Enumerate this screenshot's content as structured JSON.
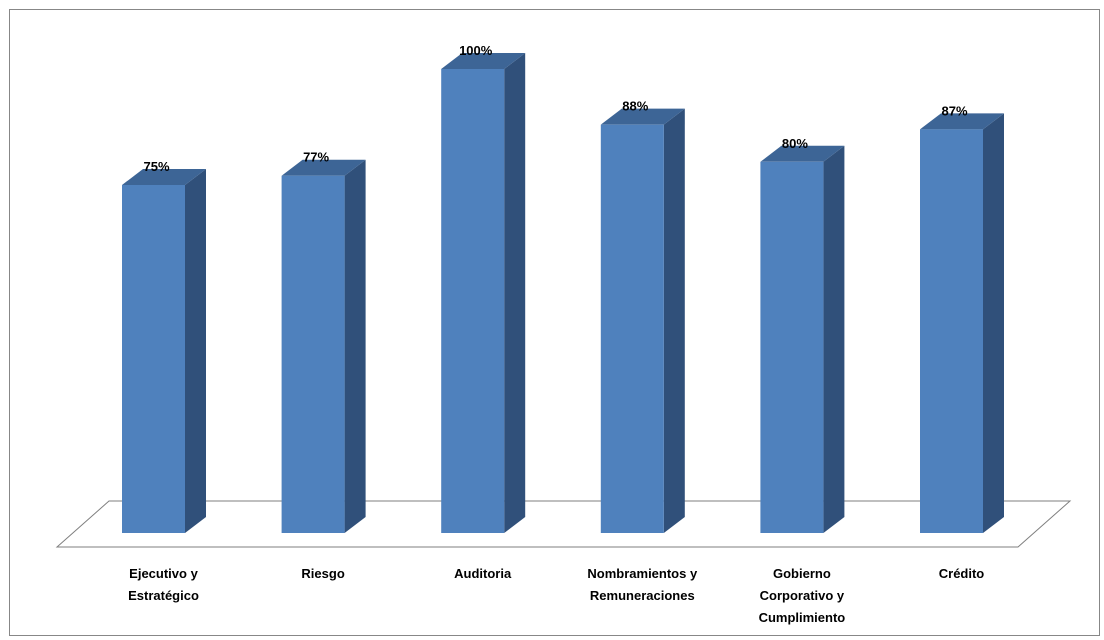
{
  "chart_data": {
    "type": "bar",
    "style": "3d-column",
    "categories": [
      [
        "Ejecutivo y",
        "Estratégico"
      ],
      [
        "Riesgo"
      ],
      [
        "Auditoria"
      ],
      [
        "Nombramientos y",
        "Remuneraciones"
      ],
      [
        "Gobierno",
        "Corporativo y",
        "Cumplimiento"
      ],
      [
        "Crédito"
      ]
    ],
    "values": [
      75,
      77,
      100,
      88,
      80,
      87
    ],
    "data_labels": [
      "75%",
      "77%",
      "100%",
      "88%",
      "80%",
      "87%"
    ],
    "ylim": [
      0,
      100
    ],
    "grid": false,
    "legend": "none",
    "colors": {
      "bar_front": "#4F81BD",
      "bar_side": "#30507A",
      "bar_top": "#3D6596",
      "floor_line": "#7F7F7F",
      "frame": "#878787"
    }
  }
}
